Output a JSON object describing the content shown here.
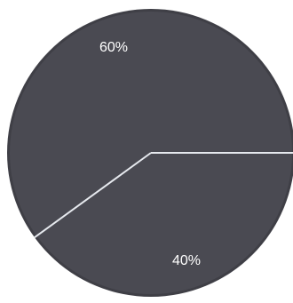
{
  "chart_data": {
    "type": "pie",
    "title": "",
    "slices": [
      {
        "label": "60%",
        "value": 60
      },
      {
        "label": "40%",
        "value": 40
      }
    ],
    "start_angle_deg": 0,
    "colors": {
      "fill": "#4a4a52",
      "edge": "#3f3f46",
      "divider": "#e6e9ee"
    }
  }
}
